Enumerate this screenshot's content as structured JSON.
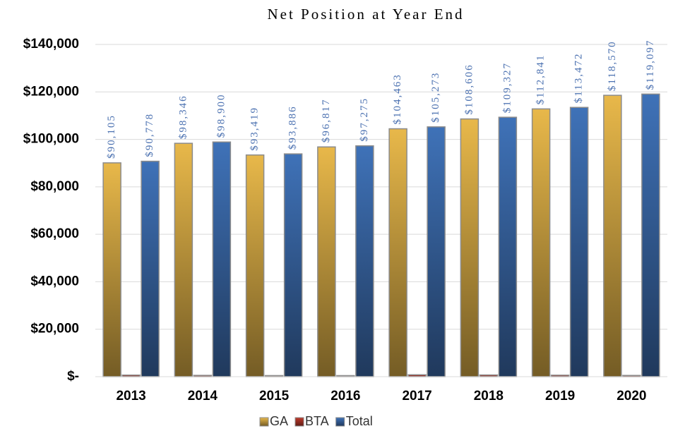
{
  "chart_data": {
    "type": "bar",
    "title": "Net Position at Year End",
    "categories": [
      "2013",
      "2014",
      "2015",
      "2016",
      "2017",
      "2018",
      "2019",
      "2020"
    ],
    "series": [
      {
        "name": "GA",
        "color": "#e8b84a",
        "values": [
          90105,
          98346,
          93419,
          96817,
          104463,
          108606,
          112841,
          118570
        ],
        "value_labels": [
          "$90,105",
          "$98,346",
          "$93,419",
          "$96,817",
          "$104,463",
          "$108,606",
          "$112,841",
          "$118,570"
        ]
      },
      {
        "name": "BTA",
        "color": "#c0392b",
        "values": [
          673,
          554,
          467,
          458,
          810,
          721,
          631,
          527
        ]
      },
      {
        "name": "Total",
        "color": "#3f72b8",
        "values": [
          90778,
          98900,
          93886,
          97275,
          105273,
          109327,
          113472,
          119097
        ],
        "value_labels": [
          "$90,778",
          "$98,900",
          "$93,886",
          "$97,275",
          "$105,273",
          "$109,327",
          "$113,472",
          "$119,097"
        ]
      }
    ],
    "ylim": [
      0,
      140000
    ],
    "yticks": [
      {
        "value": 0,
        "label": "$-"
      },
      {
        "value": 20000,
        "label": "$20,000"
      },
      {
        "value": 40000,
        "label": "$40,000"
      },
      {
        "value": 60000,
        "label": "$60,000"
      },
      {
        "value": 80000,
        "label": "$80,000"
      },
      {
        "value": 100000,
        "label": "$100,000"
      },
      {
        "value": 120000,
        "label": "$120,000"
      },
      {
        "value": 140000,
        "label": "$140,000"
      }
    ],
    "grid": true,
    "legend": "bottom"
  }
}
